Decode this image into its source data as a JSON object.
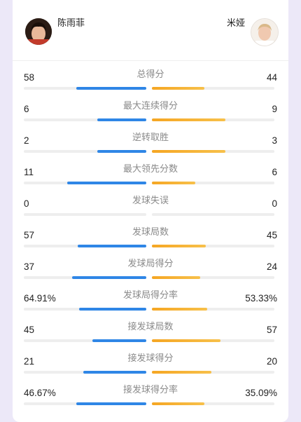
{
  "players": {
    "left": {
      "name": "陈雨菲",
      "color": "#2f86e6"
    },
    "right": {
      "name": "米娅",
      "color": "#f5a623"
    }
  },
  "stats": [
    {
      "label": "总得分",
      "left": "58",
      "right": "44",
      "left_ratio": 0.569,
      "right_ratio": 0.431
    },
    {
      "label": "最大连续得分",
      "left": "6",
      "right": "9",
      "left_ratio": 0.4,
      "right_ratio": 0.6
    },
    {
      "label": "逆转取胜",
      "left": "2",
      "right": "3",
      "left_ratio": 0.4,
      "right_ratio": 0.6
    },
    {
      "label": "最大领先分数",
      "left": "11",
      "right": "6",
      "left_ratio": 0.647,
      "right_ratio": 0.353
    },
    {
      "label": "发球失误",
      "left": "0",
      "right": "0",
      "left_ratio": 0,
      "right_ratio": 0
    },
    {
      "label": "发球局数",
      "left": "57",
      "right": "45",
      "left_ratio": 0.559,
      "right_ratio": 0.441
    },
    {
      "label": "发球局得分",
      "left": "37",
      "right": "24",
      "left_ratio": 0.607,
      "right_ratio": 0.393
    },
    {
      "label": "发球局得分率",
      "left": "64.91%",
      "right": "53.33%",
      "left_ratio": 0.549,
      "right_ratio": 0.451
    },
    {
      "label": "接发球局数",
      "left": "45",
      "right": "57",
      "left_ratio": 0.441,
      "right_ratio": 0.559
    },
    {
      "label": "接发球得分",
      "left": "21",
      "right": "20",
      "left_ratio": 0.512,
      "right_ratio": 0.488
    },
    {
      "label": "接发球得分率",
      "left": "46.67%",
      "right": "35.09%",
      "left_ratio": 0.571,
      "right_ratio": 0.429
    }
  ]
}
